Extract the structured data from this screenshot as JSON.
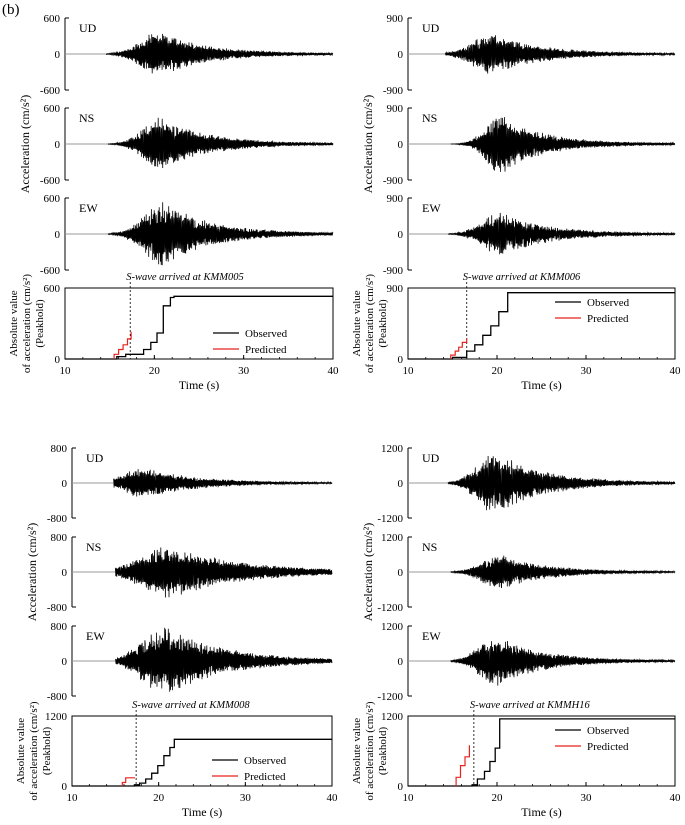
{
  "figure": {
    "panel_label": "(b)",
    "trace_color": "#000000",
    "predicted_color": "#e8231f",
    "baseline_color": "#999999"
  },
  "chart_data": [
    {
      "type": "line",
      "station": "KMM005",
      "ylabel_trace": "Acceleration (cm/s²)",
      "ylabel_peak_lines": [
        "Absolute value",
        "of acceleration (cm/s²)",
        "(Peakhold)"
      ],
      "xlabel": "Time (s)",
      "xlim": [
        10,
        40
      ],
      "xticks": [
        10,
        20,
        30,
        40
      ],
      "components": [
        {
          "name": "UD",
          "ylim": [
            -600,
            600
          ],
          "yticks": [
            600,
            0,
            -600
          ],
          "onset": 14.6,
          "center": 20.5,
          "width": 3.0,
          "amp": 390,
          "seed": 11
        },
        {
          "name": "NS",
          "ylim": [
            -600,
            600
          ],
          "yticks": [
            600,
            0,
            -600
          ],
          "onset": 14.8,
          "center": 20.8,
          "width": 2.8,
          "amp": 480,
          "seed": 23
        },
        {
          "name": "EW",
          "ylim": [
            -600,
            600
          ],
          "yticks": [
            600,
            0,
            -600
          ],
          "onset": 14.8,
          "center": 21.0,
          "width": 3.0,
          "amp": 560,
          "seed": 37
        }
      ],
      "peakhold": {
        "ylim": [
          0,
          600
        ],
        "yticks": [
          0,
          600
        ],
        "swave_time": 17.3,
        "swave_label": "S-wave arrived at KMM005",
        "observed": [
          [
            10,
            0
          ],
          [
            15.8,
            0
          ],
          [
            15.8,
            20
          ],
          [
            16.8,
            20
          ],
          [
            16.8,
            40
          ],
          [
            18.8,
            40
          ],
          [
            18.8,
            80
          ],
          [
            19.6,
            80
          ],
          [
            19.6,
            140
          ],
          [
            20.3,
            140
          ],
          [
            20.3,
            220
          ],
          [
            21.0,
            220
          ],
          [
            21.0,
            450
          ],
          [
            21.8,
            450
          ],
          [
            21.8,
            520
          ],
          [
            22.2,
            520
          ],
          [
            22.2,
            530
          ],
          [
            40,
            530
          ]
        ],
        "predicted": [
          [
            15.5,
            0
          ],
          [
            15.5,
            40
          ],
          [
            16.0,
            40
          ],
          [
            16.0,
            80
          ],
          [
            16.5,
            80
          ],
          [
            16.5,
            120
          ],
          [
            17.0,
            120
          ],
          [
            17.0,
            170
          ],
          [
            17.4,
            170
          ],
          [
            17.4,
            230
          ]
        ],
        "legend": [
          "Observed",
          "Predicted"
        ]
      }
    },
    {
      "type": "line",
      "station": "KMM006",
      "ylabel_trace": "Acceleration (cm/s²)",
      "ylabel_peak_lines": [
        "Absolute value",
        "of acceleration (cm/s²)",
        "(Peakhold)"
      ],
      "xlabel": "Time (s)",
      "xlim": [
        10,
        40
      ],
      "xticks": [
        10,
        20,
        30,
        40
      ],
      "components": [
        {
          "name": "UD",
          "ylim": [
            -900,
            900
          ],
          "yticks": [
            900,
            0,
            -900
          ],
          "onset": 14.2,
          "center": 19.5,
          "width": 3.2,
          "amp": 520,
          "seed": 41
        },
        {
          "name": "NS",
          "ylim": [
            -900,
            900
          ],
          "yticks": [
            900,
            0,
            -900
          ],
          "onset": 14.8,
          "center": 20.5,
          "width": 2.4,
          "amp": 820,
          "seed": 53
        },
        {
          "name": "EW",
          "ylim": [
            -900,
            900
          ],
          "yticks": [
            900,
            0,
            -900
          ],
          "onset": 14.5,
          "center": 20.5,
          "width": 3.0,
          "amp": 560,
          "seed": 67
        }
      ],
      "peakhold": {
        "ylim": [
          0,
          900
        ],
        "yticks": [
          0,
          900
        ],
        "swave_time": 16.6,
        "swave_label": "S-wave arrived at KMM006",
        "observed": [
          [
            10,
            0
          ],
          [
            15.0,
            0
          ],
          [
            15.0,
            20
          ],
          [
            16.6,
            20
          ],
          [
            16.6,
            100
          ],
          [
            17.5,
            100
          ],
          [
            17.5,
            180
          ],
          [
            18.4,
            180
          ],
          [
            18.4,
            300
          ],
          [
            19.3,
            300
          ],
          [
            19.3,
            420
          ],
          [
            20.2,
            420
          ],
          [
            20.2,
            600
          ],
          [
            21.2,
            600
          ],
          [
            21.2,
            840
          ],
          [
            40,
            840
          ]
        ],
        "predicted": [
          [
            14.8,
            0
          ],
          [
            14.8,
            50
          ],
          [
            15.3,
            50
          ],
          [
            15.3,
            100
          ],
          [
            15.7,
            100
          ],
          [
            15.7,
            150
          ],
          [
            16.1,
            150
          ],
          [
            16.1,
            210
          ],
          [
            16.6,
            210
          ],
          [
            16.6,
            260
          ]
        ],
        "legend": [
          "Observed",
          "Predicted"
        ]
      }
    },
    {
      "type": "line",
      "station": "KMM008",
      "ylabel_trace": "Acceleration (cm/s²)",
      "ylabel_peak_lines": [
        "Absolute value",
        "of acceleration (cm/s²)",
        "(Peakhold)"
      ],
      "xlabel": "Time (s)",
      "xlim": [
        10,
        40
      ],
      "xticks": [
        10,
        20,
        30,
        40
      ],
      "components": [
        {
          "name": "UD",
          "ylim": [
            -800,
            800
          ],
          "yticks": [
            800,
            0,
            -800
          ],
          "onset": 14.8,
          "center": 18.5,
          "width": 3.5,
          "amp": 360,
          "seed": 71
        },
        {
          "name": "NS",
          "ylim": [
            -800,
            800
          ],
          "yticks": [
            800,
            0,
            -800
          ],
          "onset": 15.0,
          "center": 21.5,
          "width": 5.0,
          "amp": 600,
          "seed": 83
        },
        {
          "name": "EW",
          "ylim": [
            -800,
            800
          ],
          "yticks": [
            800,
            0,
            -800
          ],
          "onset": 15.0,
          "center": 21.0,
          "width": 4.0,
          "amp": 780,
          "seed": 97
        }
      ],
      "peakhold": {
        "ylim": [
          0,
          1200
        ],
        "yticks": [
          0,
          1200
        ],
        "swave_time": 17.4,
        "swave_label": "S-wave arrived at KMM008",
        "observed": [
          [
            10,
            0
          ],
          [
            17.2,
            0
          ],
          [
            17.2,
            20
          ],
          [
            17.8,
            20
          ],
          [
            17.8,
            50
          ],
          [
            18.5,
            50
          ],
          [
            18.5,
            120
          ],
          [
            19.2,
            120
          ],
          [
            19.2,
            220
          ],
          [
            19.9,
            220
          ],
          [
            19.9,
            350
          ],
          [
            20.6,
            350
          ],
          [
            20.6,
            520
          ],
          [
            21.3,
            520
          ],
          [
            21.3,
            660
          ],
          [
            21.8,
            660
          ],
          [
            21.8,
            800
          ],
          [
            40,
            800
          ]
        ],
        "predicted": [
          [
            15.8,
            0
          ],
          [
            15.8,
            60
          ],
          [
            16.2,
            60
          ],
          [
            16.2,
            140
          ],
          [
            17.2,
            140
          ],
          [
            17.2,
            150
          ]
        ],
        "legend": [
          "Observed",
          "Predicted"
        ]
      }
    },
    {
      "type": "line",
      "station": "KMMH16",
      "ylabel_trace": "Acceleration (cm/s²)",
      "ylabel_peak_lines": [
        "Absolute value",
        "of acceleration (cm/s²)",
        "(Peakhold)"
      ],
      "xlabel": "Time (s)",
      "xlim": [
        10,
        40
      ],
      "xticks": [
        10,
        20,
        30,
        40
      ],
      "components": [
        {
          "name": "UD",
          "ylim": [
            -1200,
            1200
          ],
          "yticks": [
            1200,
            0,
            -1200
          ],
          "onset": 14.5,
          "center": 20.0,
          "width": 3.0,
          "amp": 1100,
          "seed": 101
        },
        {
          "name": "NS",
          "ylim": [
            -1200,
            1200
          ],
          "yticks": [
            1200,
            0,
            -1200
          ],
          "onset": 14.8,
          "center": 20.5,
          "width": 3.0,
          "amp": 600,
          "seed": 113
        },
        {
          "name": "EW",
          "ylim": [
            -1200,
            1200
          ],
          "yticks": [
            1200,
            0,
            -1200
          ],
          "onset": 14.8,
          "center": 20.0,
          "width": 2.8,
          "amp": 900,
          "seed": 127
        }
      ],
      "peakhold": {
        "ylim": [
          0,
          1200
        ],
        "yticks": [
          0,
          1200
        ],
        "swave_time": 17.4,
        "swave_label": "S-wave arrived at KMMH16",
        "observed": [
          [
            10,
            0
          ],
          [
            17.2,
            0
          ],
          [
            17.2,
            20
          ],
          [
            17.8,
            20
          ],
          [
            17.8,
            120
          ],
          [
            18.6,
            120
          ],
          [
            18.6,
            250
          ],
          [
            19.2,
            250
          ],
          [
            19.2,
            420
          ],
          [
            19.8,
            420
          ],
          [
            19.8,
            650
          ],
          [
            20.3,
            650
          ],
          [
            20.3,
            1150
          ],
          [
            40,
            1150
          ]
        ],
        "predicted": [
          [
            15.4,
            0
          ],
          [
            15.4,
            150
          ],
          [
            15.9,
            150
          ],
          [
            15.9,
            350
          ],
          [
            16.4,
            350
          ],
          [
            16.4,
            500
          ],
          [
            16.9,
            500
          ],
          [
            16.9,
            700
          ]
        ],
        "legend": [
          "Observed",
          "Predicted"
        ]
      }
    }
  ]
}
